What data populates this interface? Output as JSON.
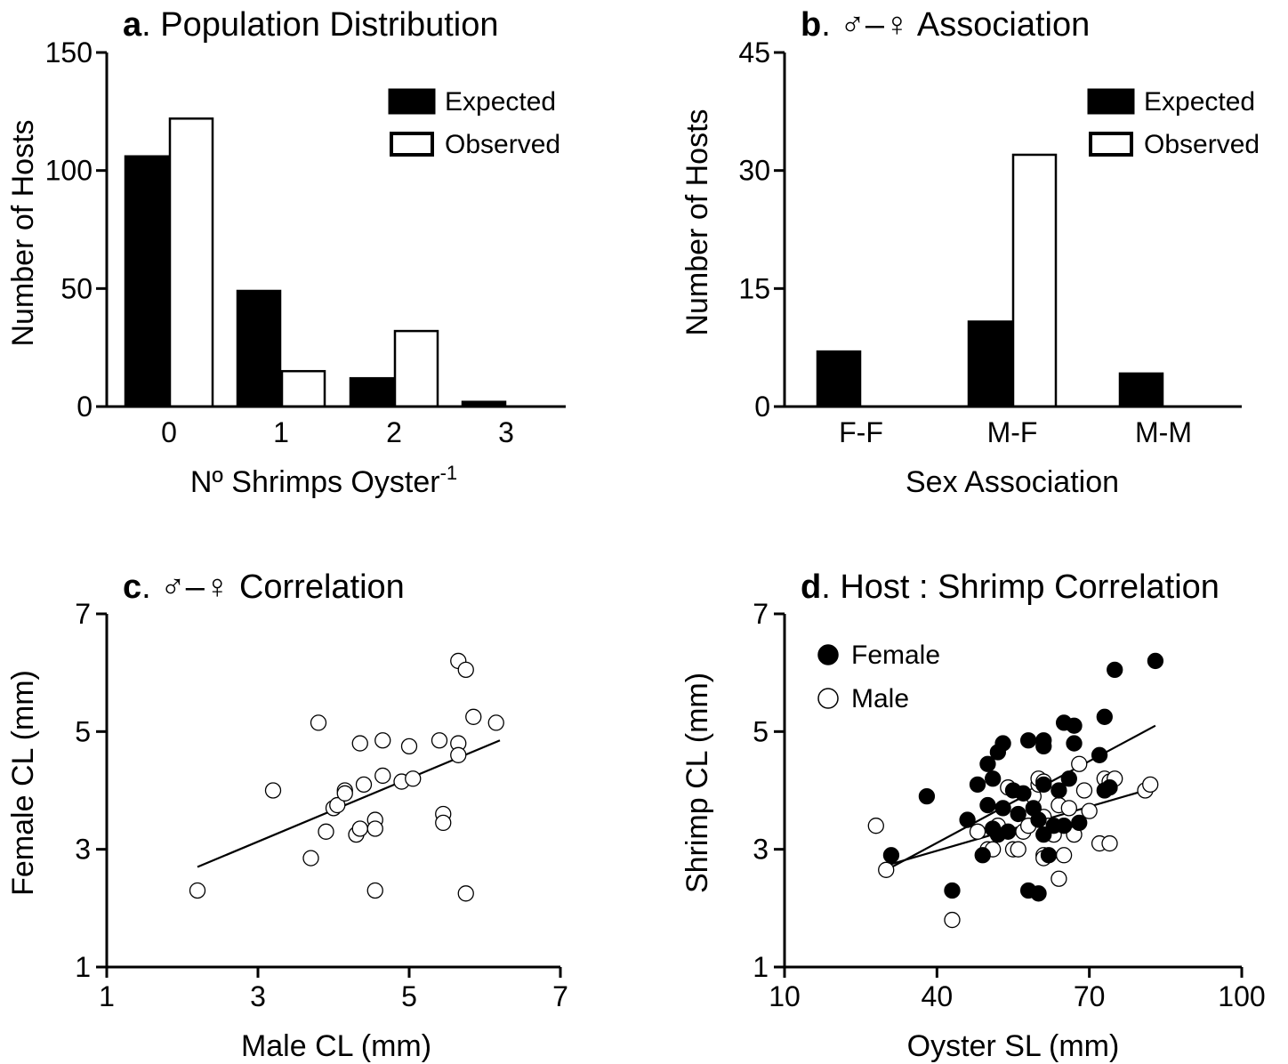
{
  "chart_data": [
    {
      "id": "a",
      "type": "bar",
      "title_letter": "a",
      "title": ". Population Distribution",
      "xlabel": "Nº Shrimps Oyster",
      "xlabel_sup": "-1",
      "ylabel": "Number of Hosts",
      "categories": [
        "0",
        "1",
        "2",
        "3"
      ],
      "ylim": [
        0,
        150
      ],
      "yticks": [
        "0",
        "50",
        "100",
        "150"
      ],
      "legend_position": "top-right",
      "series": [
        {
          "name": "Expected",
          "color": "#000000",
          "values": [
            106,
            49,
            12,
            2
          ]
        },
        {
          "name": "Observed",
          "color": "#ffffff",
          "values": [
            122,
            15,
            32,
            0
          ]
        }
      ]
    },
    {
      "id": "b",
      "type": "bar",
      "title_letter": "b",
      "title": ". ♂–♀ Association",
      "xlabel": "Sex Association",
      "ylabel": "Number of Hosts",
      "categories": [
        "F-F",
        "M-F",
        "M-M"
      ],
      "ylim": [
        0,
        45
      ],
      "yticks": [
        "0",
        "15",
        "30",
        "45"
      ],
      "legend_position": "top-right",
      "series": [
        {
          "name": "Expected",
          "color": "#000000",
          "values": [
            7,
            10.8,
            4.2
          ]
        },
        {
          "name": "Observed",
          "color": "#ffffff",
          "values": [
            0,
            32,
            0
          ]
        }
      ]
    },
    {
      "id": "c",
      "type": "scatter",
      "title_letter": "c",
      "title": ". ♂–♀ Correlation",
      "xlabel": "Male CL (mm)",
      "ylabel": "Female CL (mm)",
      "xlim": [
        1,
        7
      ],
      "ylim": [
        1,
        7
      ],
      "xticks": [
        "1",
        "3",
        "5",
        "7"
      ],
      "yticks": [
        "1",
        "3",
        "5",
        "7"
      ],
      "series": [
        {
          "name": "",
          "fill": "#ffffff",
          "points": [
            [
              2.2,
              2.3
            ],
            [
              3.2,
              4.0
            ],
            [
              3.8,
              5.15
            ],
            [
              3.7,
              2.85
            ],
            [
              3.9,
              3.3
            ],
            [
              4.0,
              3.7
            ],
            [
              4.05,
              3.75
            ],
            [
              4.15,
              4.0
            ],
            [
              4.15,
              3.95
            ],
            [
              4.3,
              3.25
            ],
            [
              4.35,
              4.8
            ],
            [
              4.4,
              4.1
            ],
            [
              4.35,
              3.35
            ],
            [
              4.55,
              3.5
            ],
            [
              4.55,
              3.35
            ],
            [
              4.55,
              2.3
            ],
            [
              4.65,
              4.25
            ],
            [
              4.65,
              4.85
            ],
            [
              4.9,
              4.15
            ],
            [
              5.0,
              4.75
            ],
            [
              5.05,
              4.2
            ],
            [
              5.4,
              4.85
            ],
            [
              5.45,
              3.6
            ],
            [
              5.45,
              3.45
            ],
            [
              5.65,
              6.2
            ],
            [
              5.65,
              4.8
            ],
            [
              5.65,
              4.6
            ],
            [
              5.75,
              6.05
            ],
            [
              5.75,
              2.25
            ],
            [
              5.85,
              5.25
            ],
            [
              6.15,
              5.15
            ]
          ]
        }
      ],
      "trendlines": [
        {
          "x": [
            2.2,
            6.2
          ],
          "y": [
            2.7,
            4.85
          ]
        }
      ]
    },
    {
      "id": "d",
      "type": "scatter",
      "title_letter": "d",
      "title": ". Host : Shrimp Correlation",
      "xlabel": "Oyster SL (mm)",
      "ylabel": "Shrimp CL (mm)",
      "xlim": [
        10,
        100
      ],
      "ylim": [
        1,
        7
      ],
      "xticks": [
        "10",
        "40",
        "70",
        "100"
      ],
      "yticks": [
        "1",
        "3",
        "5",
        "7"
      ],
      "legend_position": "top-left",
      "series": [
        {
          "name": "Female",
          "fill": "#000000",
          "points": [
            [
              31,
              2.9
            ],
            [
              38,
              3.9
            ],
            [
              43,
              2.3
            ],
            [
              46,
              3.5
            ],
            [
              48,
              4.1
            ],
            [
              49,
              2.9
            ],
            [
              50,
              4.45
            ],
            [
              50,
              3.75
            ],
            [
              51,
              4.2
            ],
            [
              51,
              3.35
            ],
            [
              52,
              4.65
            ],
            [
              52,
              3.25
            ],
            [
              53,
              4.8
            ],
            [
              53,
              3.7
            ],
            [
              54,
              3.3
            ],
            [
              55,
              4.0
            ],
            [
              56,
              3.6
            ],
            [
              57,
              3.95
            ],
            [
              58,
              4.85
            ],
            [
              58,
              2.3
            ],
            [
              59,
              3.7
            ],
            [
              60,
              3.5
            ],
            [
              60,
              2.25
            ],
            [
              61,
              4.85
            ],
            [
              61,
              4.75
            ],
            [
              61,
              4.1
            ],
            [
              61,
              3.25
            ],
            [
              62,
              2.9
            ],
            [
              63,
              3.4
            ],
            [
              64,
              4.0
            ],
            [
              65,
              5.15
            ],
            [
              65,
              3.4
            ],
            [
              66,
              4.2
            ],
            [
              67,
              5.1
            ],
            [
              67,
              4.8
            ],
            [
              68,
              3.45
            ],
            [
              72,
              4.6
            ],
            [
              73,
              5.25
            ],
            [
              73,
              4.0
            ],
            [
              74,
              4.05
            ],
            [
              75,
              6.05
            ],
            [
              83,
              6.2
            ]
          ]
        },
        {
          "name": "Male",
          "fill": "#ffffff",
          "points": [
            [
              28,
              3.4
            ],
            [
              30,
              2.65
            ],
            [
              48,
              3.3
            ],
            [
              50,
              3.0
            ],
            [
              51,
              3.0
            ],
            [
              52,
              3.4
            ],
            [
              54,
              4.05
            ],
            [
              55,
              3.0
            ],
            [
              56,
              3.0
            ],
            [
              57,
              3.3
            ],
            [
              58,
              3.4
            ],
            [
              59,
              3.9
            ],
            [
              60,
              4.1
            ],
            [
              60,
              4.2
            ],
            [
              61,
              4.15
            ],
            [
              61,
              3.55
            ],
            [
              61,
              2.9
            ],
            [
              61,
              2.85
            ],
            [
              62,
              3.4
            ],
            [
              63,
              3.3
            ],
            [
              63,
              3.25
            ],
            [
              64,
              3.75
            ],
            [
              64,
              2.5
            ],
            [
              65,
              2.9
            ],
            [
              66,
              3.7
            ],
            [
              67,
              3.25
            ],
            [
              68,
              4.45
            ],
            [
              69,
              4.0
            ],
            [
              70,
              3.65
            ],
            [
              72,
              3.1
            ],
            [
              73,
              4.2
            ],
            [
              74,
              4.15
            ],
            [
              74,
              3.1
            ],
            [
              75,
              4.2
            ],
            [
              81,
              4.0
            ],
            [
              82,
              4.1
            ],
            [
              43,
              1.8
            ]
          ]
        }
      ],
      "trendlines": [
        {
          "x": [
            29,
            83
          ],
          "y": [
            2.6,
            5.1
          ]
        },
        {
          "x": [
            29,
            83
          ],
          "y": [
            2.7,
            4.05
          ]
        }
      ]
    }
  ]
}
